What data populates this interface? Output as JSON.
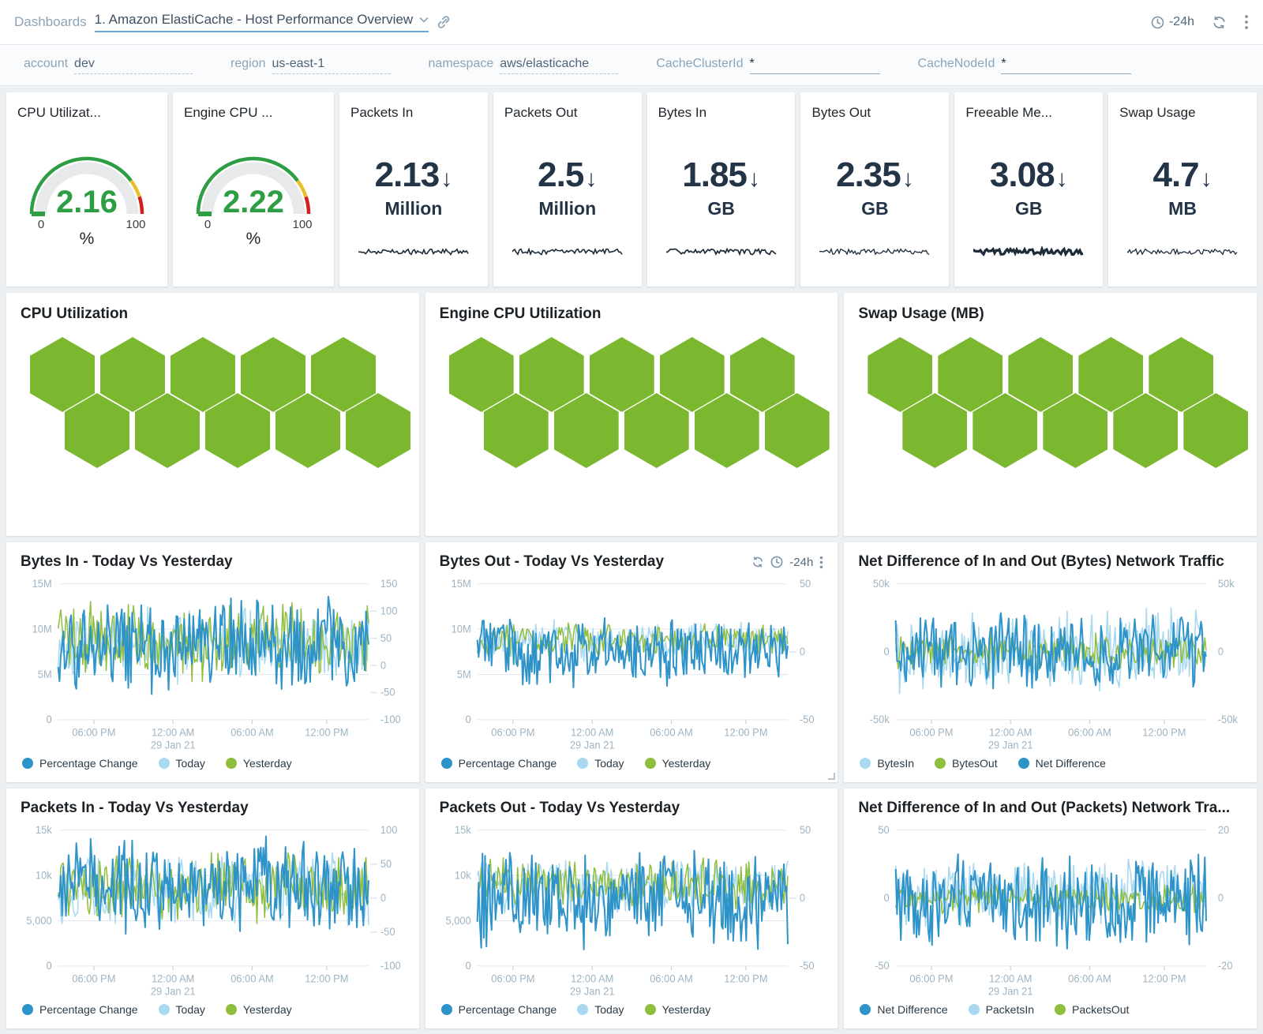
{
  "topbar": {
    "breadcrumb": "Dashboards",
    "title": "1. Amazon ElastiCache - Host Performance Overview",
    "time_range": "-24h"
  },
  "filters": [
    {
      "label": "account",
      "value": "dev",
      "underline": "dashed"
    },
    {
      "label": "region",
      "value": "us-east-1",
      "underline": "dashed"
    },
    {
      "label": "namespace",
      "value": "aws/elasticache",
      "underline": "dashed"
    },
    {
      "label": "CacheClusterId",
      "value": "*",
      "underline": "solid"
    },
    {
      "label": "CacheNodeId",
      "value": "*",
      "underline": "solid"
    }
  ],
  "colors": {
    "pct_blue": "#2e93c9",
    "light_blue": "#a8d9f0",
    "green": "#8fbe3c",
    "hex_green": "#7cb82f",
    "gauge_green": "#2e9e44",
    "gauge_yellow": "#e8bf2b",
    "gauge_red": "#d21f1f",
    "navy": "#233447",
    "axis_label": "#9fb4c3"
  },
  "kpis": [
    {
      "type": "gauge",
      "title": "CPU Utilizat...",
      "value": "2.16",
      "unit": "%",
      "min": "0",
      "max": "100"
    },
    {
      "type": "gauge",
      "title": "Engine CPU ...",
      "value": "2.22",
      "unit": "%",
      "min": "0",
      "max": "100"
    },
    {
      "type": "number",
      "title": "Packets In",
      "value": "2.13",
      "trend": "down",
      "unit": "Million",
      "spark_seed": 11,
      "spark_w": 1.6
    },
    {
      "type": "number",
      "title": "Packets Out",
      "value": "2.5",
      "trend": "down",
      "unit": "Million",
      "spark_seed": 12,
      "spark_w": 1.6
    },
    {
      "type": "number",
      "title": "Bytes In",
      "value": "1.85",
      "trend": "down",
      "unit": "GB",
      "spark_seed": 13,
      "spark_w": 1.7
    },
    {
      "type": "number",
      "title": "Bytes Out",
      "value": "2.35",
      "trend": "down",
      "unit": "GB",
      "spark_seed": 14,
      "spark_w": 1.3
    },
    {
      "type": "number",
      "title": "Freeable Me...",
      "value": "3.08",
      "trend": "down",
      "unit": "GB",
      "spark_seed": 15,
      "spark_w": 3.2
    },
    {
      "type": "number",
      "title": "Swap Usage",
      "value": "4.7",
      "trend": "down",
      "unit": "MB",
      "spark_seed": 16,
      "spark_w": 1.3
    }
  ],
  "honeycombs": [
    {
      "title": "CPU Utilization",
      "hex_color": "#7cb82f",
      "rows": [
        5,
        5
      ]
    },
    {
      "title": "Engine CPU Utilization",
      "hex_color": "#7cb82f",
      "rows": [
        5,
        5
      ]
    },
    {
      "title": "Swap Usage (MB)",
      "hex_color": "#7cb82f",
      "rows": [
        5,
        5
      ]
    }
  ],
  "chart_data": [
    {
      "type": "line",
      "title": "Bytes In - Today Vs Yesterday",
      "toolbar": false,
      "left_axis": {
        "range": [
          0,
          15000000
        ],
        "ticks": [
          {
            "label": "15M",
            "f": 0
          },
          {
            "label": "10M",
            "f": 0.333
          },
          {
            "label": "5M",
            "f": 0.667
          },
          {
            "label": "0",
            "f": 1
          }
        ]
      },
      "right_axis": {
        "range": [
          -100,
          150
        ],
        "ticks": [
          {
            "label": "150",
            "f": 0
          },
          {
            "label": "100",
            "f": 0.2
          },
          {
            "label": "50",
            "f": 0.4
          },
          {
            "label": "0",
            "f": 0.6
          },
          {
            "label": "-50",
            "f": 0.8
          },
          {
            "label": "-100",
            "f": 1
          }
        ]
      },
      "x_ticks": [
        {
          "label": "06:00 PM",
          "f": 0.115
        },
        {
          "label": "12:00 AM",
          "f": 0.37,
          "sub": "29 Jan 21"
        },
        {
          "label": "06:00 AM",
          "f": 0.625
        },
        {
          "label": "12:00 PM",
          "f": 0.865
        }
      ],
      "series": [
        {
          "name": "Today",
          "color": "#a8d9f0",
          "axis": "right2none_left",
          "axisname": "left",
          "min": 3800000,
          "max": 13200000,
          "seed": 101,
          "w": 1.5
        },
        {
          "name": "Yesterday",
          "color": "#8fbe3c",
          "axisname": "left",
          "min": 4000000,
          "max": 13500000,
          "seed": 102,
          "w": 1.5
        },
        {
          "name": "Percentage Change",
          "color": "#2e93c9",
          "axisname": "right",
          "min": -60,
          "max": 135,
          "seed": 103,
          "w": 2
        }
      ],
      "legend": [
        {
          "label": "Percentage Change",
          "color": "#2e93c9"
        },
        {
          "label": "Today",
          "color": "#a8d9f0"
        },
        {
          "label": "Yesterday",
          "color": "#8fbe3c"
        }
      ]
    },
    {
      "type": "line",
      "title": "Bytes Out - Today Vs Yesterday",
      "toolbar": true,
      "toolbar_time": "-24h",
      "resize_corner": true,
      "left_axis": {
        "range": [
          0,
          15000000
        ],
        "ticks": [
          {
            "label": "15M",
            "f": 0
          },
          {
            "label": "10M",
            "f": 0.333
          },
          {
            "label": "5M",
            "f": 0.667
          },
          {
            "label": "0",
            "f": 1
          }
        ]
      },
      "right_axis": {
        "range": [
          -50,
          50
        ],
        "ticks": [
          {
            "label": "50",
            "f": 0
          },
          {
            "label": "0",
            "f": 0.5
          },
          {
            "label": "-50",
            "f": 1
          }
        ]
      },
      "x_ticks": [
        {
          "label": "06:00 PM",
          "f": 0.115
        },
        {
          "label": "12:00 AM",
          "f": 0.37,
          "sub": "29 Jan 21"
        },
        {
          "label": "06:00 AM",
          "f": 0.625
        },
        {
          "label": "12:00 PM",
          "f": 0.865
        }
      ],
      "series": [
        {
          "name": "Today",
          "color": "#a8d9f0",
          "axisname": "left",
          "min": 6200000,
          "max": 11200000,
          "seed": 201,
          "w": 1.5
        },
        {
          "name": "Yesterday",
          "color": "#8fbe3c",
          "axisname": "left",
          "min": 6800000,
          "max": 10800000,
          "seed": 202,
          "w": 1.5
        },
        {
          "name": "Percentage Change",
          "color": "#2e93c9",
          "axisname": "right",
          "min": -27,
          "max": 27,
          "seed": 203,
          "w": 2
        }
      ],
      "legend": [
        {
          "label": "Percentage Change",
          "color": "#2e93c9"
        },
        {
          "label": "Today",
          "color": "#a8d9f0"
        },
        {
          "label": "Yesterday",
          "color": "#8fbe3c"
        }
      ]
    },
    {
      "type": "line",
      "title": "Net Difference of In and Out (Bytes) Network Traffic",
      "toolbar": false,
      "left_axis": {
        "range": [
          -50000,
          50000
        ],
        "ticks": [
          {
            "label": "50k",
            "f": 0
          },
          {
            "label": "0",
            "f": 0.5
          },
          {
            "label": "-50k",
            "f": 1
          }
        ]
      },
      "right_axis": {
        "range": [
          -50000,
          50000
        ],
        "ticks": [
          {
            "label": "50k",
            "f": 0
          },
          {
            "label": "0",
            "f": 0.5
          },
          {
            "label": "-50k",
            "f": 1
          }
        ]
      },
      "x_ticks": [
        {
          "label": "06:00 PM",
          "f": 0.115
        },
        {
          "label": "12:00 AM",
          "f": 0.37,
          "sub": "29 Jan 21"
        },
        {
          "label": "06:00 AM",
          "f": 0.625
        },
        {
          "label": "12:00 PM",
          "f": 0.865
        }
      ],
      "series": [
        {
          "name": "BytesIn",
          "color": "#a8d9f0",
          "axisname": "left",
          "min": -34000,
          "max": 34000,
          "seed": 301,
          "w": 1.6
        },
        {
          "name": "BytesOut",
          "color": "#8fbe3c",
          "axisname": "left",
          "min": -15000,
          "max": 15000,
          "seed": 302,
          "w": 1.5
        },
        {
          "name": "Net Difference",
          "color": "#2e93c9",
          "axisname": "left",
          "min": -30000,
          "max": 30000,
          "seed": 303,
          "w": 2
        }
      ],
      "legend": [
        {
          "label": "BytesIn",
          "color": "#a8d9f0"
        },
        {
          "label": "BytesOut",
          "color": "#8fbe3c"
        },
        {
          "label": "Net Difference",
          "color": "#2e93c9"
        }
      ]
    },
    {
      "type": "line",
      "title": "Packets In - Today Vs Yesterday",
      "toolbar": false,
      "left_axis": {
        "range": [
          0,
          15000
        ],
        "ticks": [
          {
            "label": "15k",
            "f": 0
          },
          {
            "label": "10k",
            "f": 0.333
          },
          {
            "label": "5,000",
            "f": 0.667
          },
          {
            "label": "0",
            "f": 1
          }
        ]
      },
      "right_axis": {
        "range": [
          -100,
          100
        ],
        "ticks": [
          {
            "label": "100",
            "f": 0
          },
          {
            "label": "50",
            "f": 0.25
          },
          {
            "label": "0",
            "f": 0.5
          },
          {
            "label": "-50",
            "f": 0.75
          },
          {
            "label": "-100",
            "f": 1
          }
        ]
      },
      "x_ticks": [
        {
          "label": "06:00 PM",
          "f": 0.115
        },
        {
          "label": "12:00 AM",
          "f": 0.37,
          "sub": "29 Jan 21"
        },
        {
          "label": "06:00 AM",
          "f": 0.625
        },
        {
          "label": "12:00 PM",
          "f": 0.865
        }
      ],
      "series": [
        {
          "name": "Today",
          "color": "#a8d9f0",
          "axisname": "left",
          "min": 4000,
          "max": 13000,
          "seed": 401,
          "w": 1.5
        },
        {
          "name": "Yesterday",
          "color": "#8fbe3c",
          "axisname": "left",
          "min": 4500,
          "max": 13000,
          "seed": 402,
          "w": 1.5
        },
        {
          "name": "Percentage Change",
          "color": "#2e93c9",
          "axisname": "right",
          "min": -55,
          "max": 95,
          "seed": 403,
          "w": 2
        }
      ],
      "legend": [
        {
          "label": "Percentage Change",
          "color": "#2e93c9"
        },
        {
          "label": "Today",
          "color": "#a8d9f0"
        },
        {
          "label": "Yesterday",
          "color": "#8fbe3c"
        }
      ]
    },
    {
      "type": "line",
      "title": "Packets Out - Today Vs Yesterday",
      "toolbar": false,
      "left_axis": {
        "range": [
          0,
          15000
        ],
        "ticks": [
          {
            "label": "15k",
            "f": 0
          },
          {
            "label": "10k",
            "f": 0.333
          },
          {
            "label": "5,000",
            "f": 0.667
          },
          {
            "label": "0",
            "f": 1
          }
        ]
      },
      "right_axis": {
        "range": [
          -50,
          50
        ],
        "ticks": [
          {
            "label": "50",
            "f": 0
          },
          {
            "label": "0",
            "f": 0.5
          },
          {
            "label": "-50",
            "f": 1
          }
        ]
      },
      "x_ticks": [
        {
          "label": "06:00 PM",
          "f": 0.115
        },
        {
          "label": "12:00 AM",
          "f": 0.37,
          "sub": "29 Jan 21"
        },
        {
          "label": "06:00 AM",
          "f": 0.625
        },
        {
          "label": "12:00 PM",
          "f": 0.865
        }
      ],
      "series": [
        {
          "name": "Today",
          "color": "#a8d9f0",
          "axisname": "left",
          "min": 5000,
          "max": 12200,
          "seed": 501,
          "w": 1.5
        },
        {
          "name": "Yesterday",
          "color": "#8fbe3c",
          "axisname": "left",
          "min": 6000,
          "max": 12000,
          "seed": 502,
          "w": 1.5
        },
        {
          "name": "Percentage Change",
          "color": "#2e93c9",
          "axisname": "right",
          "min": -40,
          "max": 40,
          "seed": 503,
          "w": 2
        }
      ],
      "legend": [
        {
          "label": "Percentage Change",
          "color": "#2e93c9"
        },
        {
          "label": "Today",
          "color": "#a8d9f0"
        },
        {
          "label": "Yesterday",
          "color": "#8fbe3c"
        }
      ]
    },
    {
      "type": "line",
      "title": "Net Difference of In and Out (Packets) Network Tra...",
      "toolbar": false,
      "left_axis": {
        "range": [
          -50,
          50
        ],
        "ticks": [
          {
            "label": "50",
            "f": 0
          },
          {
            "label": "0",
            "f": 0.5
          },
          {
            "label": "-50",
            "f": 1
          }
        ]
      },
      "right_axis": {
        "range": [
          -20,
          20
        ],
        "ticks": [
          {
            "label": "20",
            "f": 0
          },
          {
            "label": "0",
            "f": 0.5
          },
          {
            "label": "-20",
            "f": 1
          }
        ]
      },
      "x_ticks": [
        {
          "label": "06:00 PM",
          "f": 0.115
        },
        {
          "label": "12:00 AM",
          "f": 0.37,
          "sub": "29 Jan 21"
        },
        {
          "label": "06:00 AM",
          "f": 0.625
        },
        {
          "label": "12:00 PM",
          "f": 0.865
        }
      ],
      "series": [
        {
          "name": "PacketsIn",
          "color": "#a8d9f0",
          "axisname": "left",
          "min": -26,
          "max": 30,
          "seed": 601,
          "w": 1.6
        },
        {
          "name": "PacketsOut",
          "color": "#8fbe3c",
          "axisname": "left",
          "min": -12,
          "max": 12,
          "seed": 602,
          "w": 1.5
        },
        {
          "name": "Net Difference",
          "color": "#2e93c9",
          "axisname": "left",
          "min": -42,
          "max": 36,
          "seed": 603,
          "w": 2
        }
      ],
      "legend": [
        {
          "label": "Net Difference",
          "color": "#2e93c9"
        },
        {
          "label": "PacketsIn",
          "color": "#a8d9f0"
        },
        {
          "label": "PacketsOut",
          "color": "#8fbe3c"
        }
      ]
    }
  ]
}
